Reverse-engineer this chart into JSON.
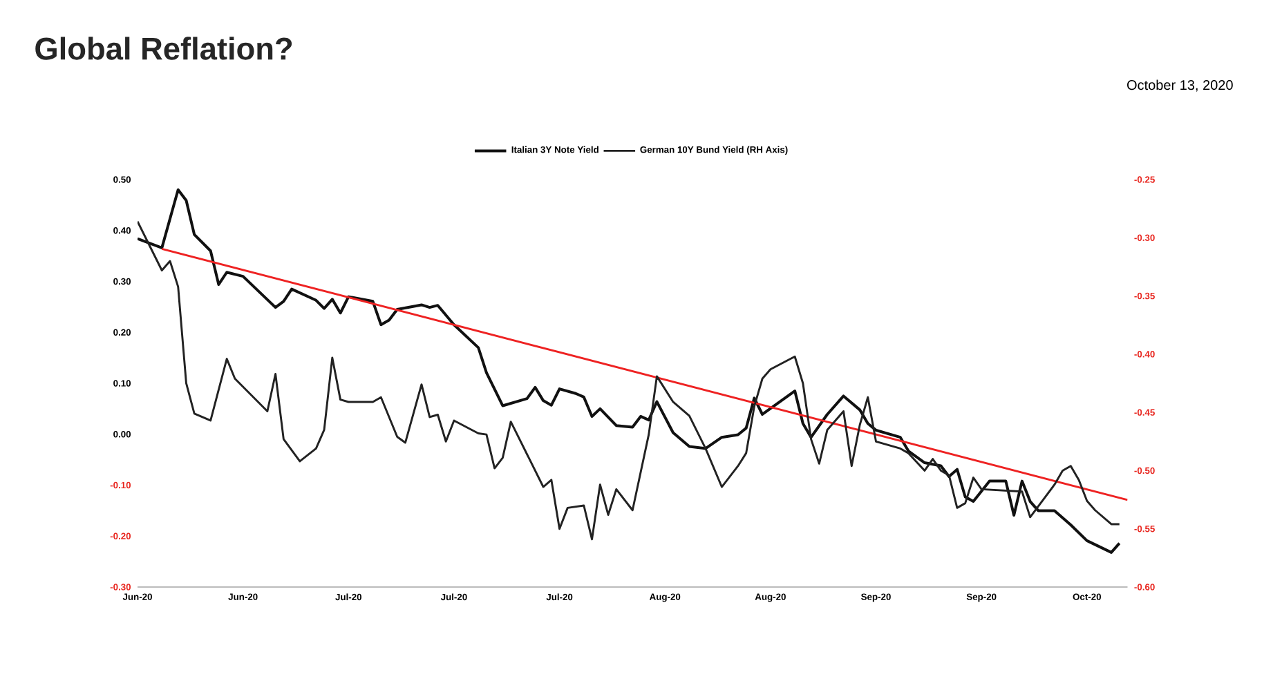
{
  "chart_data": {
    "type": "line",
    "title": "Global Reflation?",
    "annotations": [
      "October 13, 2020"
    ],
    "xlim": [
      "2020-06-08",
      "2020-10-08"
    ],
    "xticks": [
      {
        "value": "2020-06-08",
        "label": "Jun-20"
      },
      {
        "value": "2020-06-21",
        "label": "Jun-20"
      },
      {
        "value": "2020-07-04",
        "label": "Jul-20"
      },
      {
        "value": "2020-07-17",
        "label": "Jul-20"
      },
      {
        "value": "2020-07-30",
        "label": "Jul-20"
      },
      {
        "value": "2020-08-12",
        "label": "Aug-20"
      },
      {
        "value": "2020-08-25",
        "label": "Aug-20"
      },
      {
        "value": "2020-09-07",
        "label": "Sep-20"
      },
      {
        "value": "2020-09-20",
        "label": "Sep-20"
      },
      {
        "value": "2020-10-03",
        "label": "Oct-20"
      }
    ],
    "ylim": [
      -0.3,
      0.5
    ],
    "yticks": [
      {
        "value": 0.5,
        "label": "0.50"
      },
      {
        "value": 0.4,
        "label": "0.40"
      },
      {
        "value": 0.3,
        "label": "0.30"
      },
      {
        "value": 0.2,
        "label": "0.20"
      },
      {
        "value": 0.1,
        "label": "0.10"
      },
      {
        "value": 0,
        "label": "0.00"
      },
      {
        "value": -0.1,
        "label": "-0.10"
      },
      {
        "value": -0.2,
        "label": "-0.20"
      },
      {
        "value": -0.3,
        "label": "-0.30"
      }
    ],
    "y2lim": [
      -0.6,
      -0.25
    ],
    "y2ticks": [
      {
        "value": -0.25,
        "label": "-0.25"
      },
      {
        "value": -0.3,
        "label": "-0.30"
      },
      {
        "value": -0.35,
        "label": "-0.35"
      },
      {
        "value": -0.4,
        "label": "-0.40"
      },
      {
        "value": -0.45,
        "label": "-0.45"
      },
      {
        "value": -0.5,
        "label": "-0.50"
      },
      {
        "value": -0.55,
        "label": "-0.55"
      },
      {
        "value": -0.6,
        "label": "-0.60"
      }
    ],
    "legend": "top",
    "series": [
      {
        "name": "Italian 3Y Note Yield",
        "color": "#111111",
        "x": [
          "2020-06-08",
          "2020-06-11",
          "2020-06-13",
          "2020-06-14",
          "2020-06-15",
          "2020-06-17",
          "2020-06-18",
          "2020-06-19",
          "2020-06-21",
          "2020-06-25",
          "2020-06-26",
          "2020-06-27",
          "2020-06-30",
          "2020-07-01",
          "2020-07-02",
          "2020-07-03",
          "2020-07-04",
          "2020-07-07",
          "2020-07-08",
          "2020-07-09",
          "2020-07-10",
          "2020-07-13",
          "2020-07-14",
          "2020-07-15",
          "2020-07-17",
          "2020-07-20",
          "2020-07-21",
          "2020-07-23",
          "2020-07-26",
          "2020-07-27",
          "2020-07-28",
          "2020-07-29",
          "2020-07-30",
          "2020-08-01",
          "2020-08-02",
          "2020-08-03",
          "2020-08-04",
          "2020-08-06",
          "2020-08-08",
          "2020-08-09",
          "2020-08-10",
          "2020-08-11",
          "2020-08-13",
          "2020-08-15",
          "2020-08-17",
          "2020-08-19",
          "2020-08-21",
          "2020-08-22",
          "2020-08-23",
          "2020-08-24",
          "2020-08-28",
          "2020-08-29",
          "2020-08-30",
          "2020-09-01",
          "2020-09-03",
          "2020-09-05",
          "2020-09-06",
          "2020-09-07",
          "2020-09-10",
          "2020-09-11",
          "2020-09-13",
          "2020-09-15",
          "2020-09-16",
          "2020-09-17",
          "2020-09-18",
          "2020-09-19",
          "2020-09-21",
          "2020-09-23",
          "2020-09-24",
          "2020-09-25",
          "2020-09-26",
          "2020-09-27",
          "2020-09-29",
          "2020-10-01",
          "2020-10-03",
          "2020-10-06",
          "2020-10-07"
        ],
        "values": [
          0.384,
          0.366,
          0.48,
          0.459,
          0.392,
          0.36,
          0.294,
          0.318,
          0.31,
          0.249,
          0.261,
          0.285,
          0.263,
          0.247,
          0.265,
          0.238,
          0.27,
          0.261,
          0.215,
          0.224,
          0.245,
          0.254,
          0.249,
          0.253,
          0.215,
          0.17,
          0.121,
          0.056,
          0.07,
          0.092,
          0.066,
          0.057,
          0.089,
          0.08,
          0.073,
          0.035,
          0.05,
          0.017,
          0.014,
          0.035,
          0.028,
          0.064,
          0.003,
          -0.024,
          -0.028,
          -0.006,
          -0.001,
          0.012,
          0.071,
          0.039,
          0.085,
          0.021,
          -0.006,
          0.039,
          0.075,
          0.048,
          0.021,
          0.008,
          -0.006,
          -0.033,
          -0.056,
          -0.062,
          -0.083,
          -0.069,
          -0.123,
          -0.132,
          -0.092,
          -0.092,
          -0.159,
          -0.092,
          -0.132,
          -0.15,
          -0.15,
          -0.178,
          -0.209,
          -0.232,
          -0.214
        ]
      },
      {
        "name": "German 10Y Bund Yield (RH Axis)",
        "color": "#222222",
        "axis": "y2",
        "x": [
          "2020-06-08",
          "2020-06-11",
          "2020-06-12",
          "2020-06-13",
          "2020-06-14",
          "2020-06-15",
          "2020-06-17",
          "2020-06-19",
          "2020-06-20",
          "2020-06-24",
          "2020-06-25",
          "2020-06-26",
          "2020-06-28",
          "2020-06-30",
          "2020-07-01",
          "2020-07-02",
          "2020-07-03",
          "2020-07-04",
          "2020-07-07",
          "2020-07-08",
          "2020-07-10",
          "2020-07-11",
          "2020-07-13",
          "2020-07-14",
          "2020-07-15",
          "2020-07-16",
          "2020-07-17",
          "2020-07-20",
          "2020-07-21",
          "2020-07-22",
          "2020-07-23",
          "2020-07-24",
          "2020-07-28",
          "2020-07-29",
          "2020-07-30",
          "2020-07-31",
          "2020-08-02",
          "2020-08-03",
          "2020-08-04",
          "2020-08-05",
          "2020-08-06",
          "2020-08-08",
          "2020-08-10",
          "2020-08-11",
          "2020-08-13",
          "2020-08-15",
          "2020-08-17",
          "2020-08-19",
          "2020-08-21",
          "2020-08-22",
          "2020-08-23",
          "2020-08-24",
          "2020-08-25",
          "2020-08-28",
          "2020-08-29",
          "2020-08-30",
          "2020-08-31",
          "2020-09-01",
          "2020-09-03",
          "2020-09-04",
          "2020-09-05",
          "2020-09-06",
          "2020-09-07",
          "2020-09-10",
          "2020-09-11",
          "2020-09-13",
          "2020-09-14",
          "2020-09-15",
          "2020-09-16",
          "2020-09-17",
          "2020-09-18",
          "2020-09-19",
          "2020-09-20",
          "2020-09-25",
          "2020-09-26",
          "2020-09-29",
          "2020-09-30",
          "2020-10-01",
          "2020-10-02",
          "2020-10-03",
          "2020-10-04",
          "2020-10-06",
          "2020-10-07"
        ],
        "values": [
          -0.286,
          -0.328,
          -0.32,
          -0.342,
          -0.425,
          -0.451,
          -0.457,
          -0.404,
          -0.421,
          -0.449,
          -0.417,
          -0.473,
          -0.492,
          -0.481,
          -0.465,
          -0.403,
          -0.439,
          -0.441,
          -0.441,
          -0.437,
          -0.471,
          -0.476,
          -0.426,
          -0.454,
          -0.452,
          -0.475,
          -0.457,
          -0.468,
          -0.469,
          -0.498,
          -0.489,
          -0.458,
          -0.514,
          -0.508,
          -0.55,
          -0.532,
          -0.53,
          -0.559,
          -0.512,
          -0.538,
          -0.516,
          -0.534,
          -0.469,
          -0.419,
          -0.441,
          -0.453,
          -0.481,
          -0.514,
          -0.496,
          -0.485,
          -0.445,
          -0.421,
          -0.413,
          -0.402,
          -0.425,
          -0.473,
          -0.494,
          -0.465,
          -0.449,
          -0.496,
          -0.461,
          -0.437,
          -0.475,
          -0.481,
          -0.485,
          -0.5,
          -0.49,
          -0.5,
          -0.504,
          -0.532,
          -0.528,
          -0.506,
          -0.516,
          -0.518,
          -0.54,
          -0.512,
          -0.5,
          -0.496,
          -0.508,
          -0.526,
          -0.534,
          -0.546,
          -0.546
        ]
      },
      {
        "type": "line",
        "color": "#ee2222",
        "x": [
          "2020-06-11",
          "2020-10-08"
        ],
        "values": [
          0.364,
          -0.129
        ]
      }
    ]
  }
}
